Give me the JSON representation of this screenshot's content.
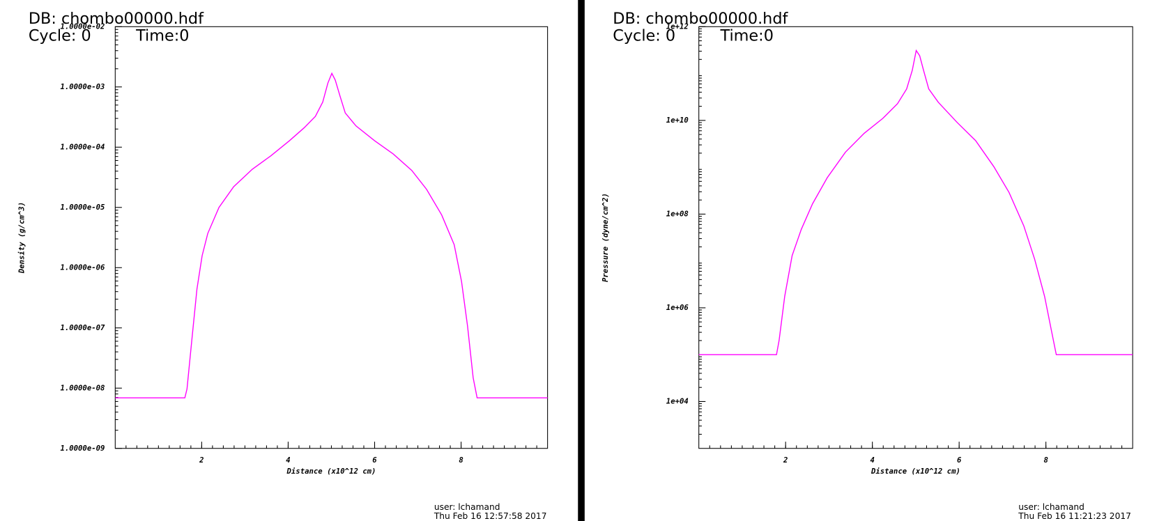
{
  "chart_data": [
    {
      "type": "line",
      "title": "DB: chombo00000.hdf",
      "cycle": "Cycle: 0",
      "time": "Time:0",
      "x_label": "Distance (x10^12 cm)",
      "y_label": "Density (g/cm^3)",
      "user": "user: lchamand",
      "date": "Thu Feb 16 12:57:58 2017",
      "log_y": true,
      "xlim": [
        0,
        10
      ],
      "xticks": [
        2,
        4,
        6,
        8
      ],
      "ylim": [
        1e-09,
        0.01
      ],
      "yticks": [
        {
          "value": 0.01,
          "label": "1.0000e-02"
        },
        {
          "value": 0.001,
          "label": "1.0000e-03"
        },
        {
          "value": 0.0001,
          "label": "1.0000e-04"
        },
        {
          "value": 1e-05,
          "label": "1.0000e-05"
        },
        {
          "value": 1e-06,
          "label": "1.0000e-06"
        },
        {
          "value": 1e-07,
          "label": "1.0000e-07"
        },
        {
          "value": 1e-08,
          "label": "1.0000e-08"
        },
        {
          "value": 1e-09,
          "label": "1.0000e-09"
        }
      ],
      "series": [
        {
          "color": "#ff00ff",
          "x": [
            0,
            1.61,
            1.66,
            1.77,
            1.89,
            2.01,
            2.14,
            2.4,
            2.74,
            3.17,
            3.6,
            4.03,
            4.37,
            4.63,
            4.8,
            4.92,
            5.01,
            5.09,
            5.2,
            5.32,
            5.57,
            6.0,
            6.43,
            6.86,
            7.2,
            7.55,
            7.84,
            8.01,
            8.15,
            8.28,
            8.37,
            10
          ],
          "values": [
            6.9e-09,
            6.9e-09,
            9.7e-09,
            6.1e-08,
            4.4e-07,
            1.58e-06,
            3.7e-06,
            1e-05,
            2.2e-05,
            4.3e-05,
            7.2e-05,
            0.000128,
            0.00021,
            0.000325,
            0.00056,
            0.00116,
            0.00168,
            0.0013,
            0.0007,
            0.00037,
            0.000225,
            0.000128,
            7.7e-05,
            4.1e-05,
            2e-05,
            7.5e-06,
            2.4e-06,
            5.9e-07,
            1.07e-07,
            1.48e-08,
            6.9e-09,
            6.9e-09
          ]
        }
      ]
    },
    {
      "type": "line",
      "title": "DB: chombo00000.hdf",
      "cycle": "Cycle: 0",
      "time": "Time:0",
      "x_label": "Distance (x10^12 cm)",
      "y_label": "Pressure (dyne/cm^2)",
      "user": "user: lchamand",
      "date": "Thu Feb 16 11:21:23 2017",
      "log_y": true,
      "xlim": [
        0,
        10
      ],
      "xticks": [
        2,
        4,
        6,
        8
      ],
      "ylim": [
        1000,
        1000000000000.0
      ],
      "yticks": [
        {
          "value": 1000000000000.0,
          "label": "1e+12"
        },
        {
          "value": 10000000000.0,
          "label": "1e+10"
        },
        {
          "value": 100000000.0,
          "label": "1e+08"
        },
        {
          "value": 1000000.0,
          "label": "1e+06"
        },
        {
          "value": 10000.0,
          "label": "1e+04"
        }
      ],
      "series": [
        {
          "color": "#ff00ff",
          "x": [
            0,
            1.79,
            1.85,
            1.98,
            2.15,
            2.36,
            2.62,
            2.96,
            3.38,
            3.81,
            4.24,
            4.58,
            4.79,
            4.92,
            5.01,
            5.09,
            5.18,
            5.3,
            5.52,
            5.95,
            6.38,
            6.8,
            7.15,
            7.49,
            7.74,
            7.97,
            8.14,
            8.24,
            10
          ],
          "values": [
            100000.0,
            100000.0,
            200000.0,
            1760000.0,
            13000000.0,
            47000000.0,
            166000000.0,
            600000000.0,
            2100000000.0,
            5300000000.0,
            11000000000.0,
            22700000000.0,
            47000000000.0,
            117000000000.0,
            310000000000.0,
            240000000000.0,
            117000000000.0,
            47000000000.0,
            24400000000.0,
            9100000000.0,
            3700000000.0,
            1030000000.0,
            290000000.0,
            56000000.0,
            10900000.0,
            1760000.0,
            285000.0,
            100000.0,
            100000.0
          ]
        }
      ]
    }
  ]
}
